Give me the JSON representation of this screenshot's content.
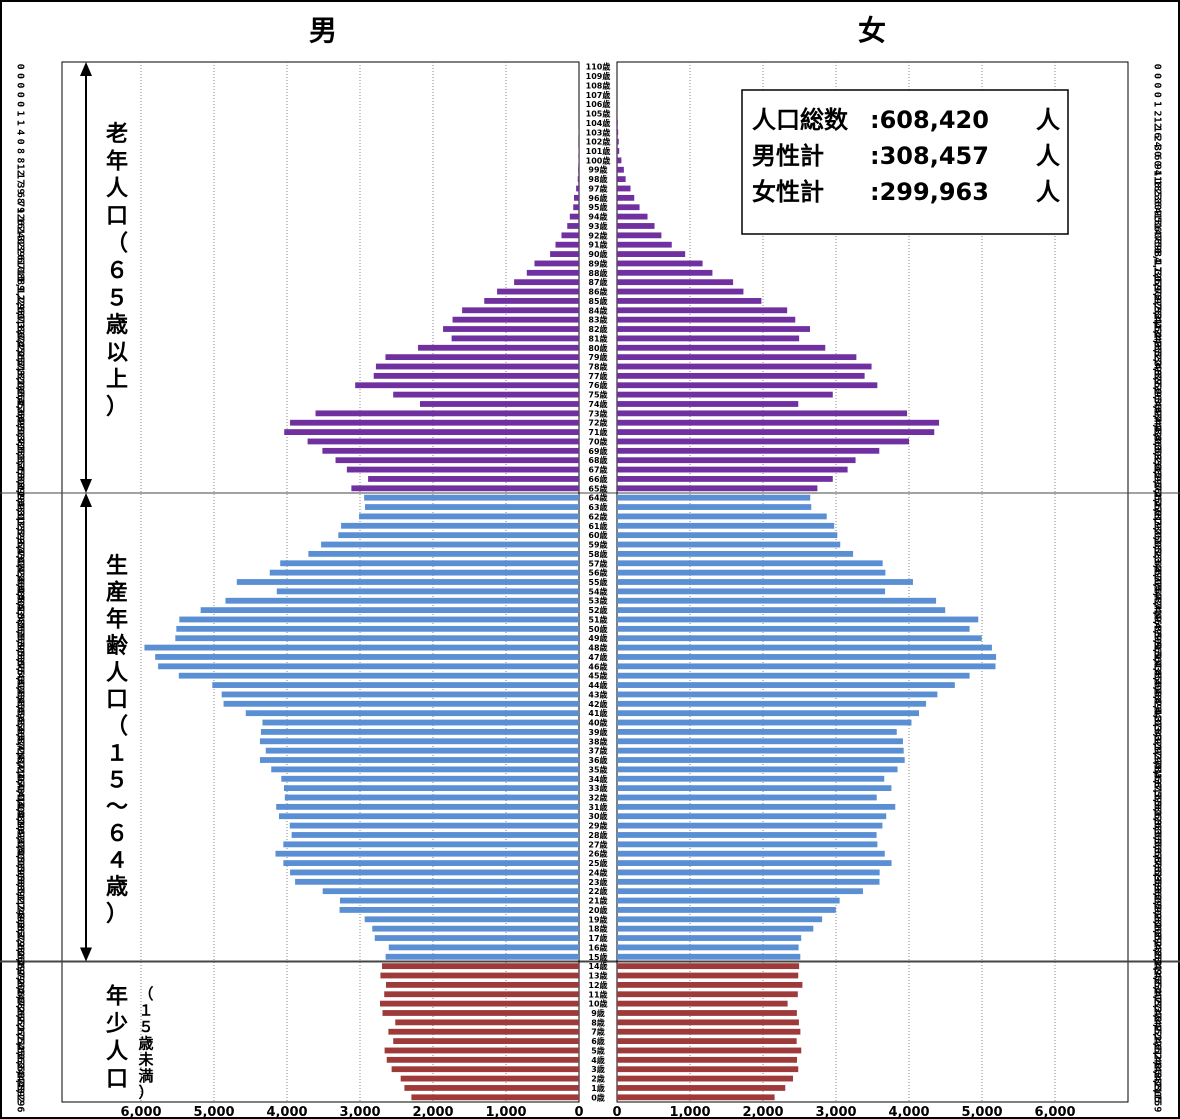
{
  "headers": {
    "male": "男",
    "female": "女"
  },
  "groups": {
    "elderly": "老年人口（６５歳以上）",
    "working": "生産年齢人口（１５～６４歳）",
    "young": "年少人口",
    "young_sub": "（１５歳未満）"
  },
  "summary": {
    "total_label": "人口総数",
    "total_value": ":608,420",
    "total_unit": "人",
    "male_label": "男性計",
    "male_value": ":308,457",
    "male_unit": "人",
    "female_label": "女性計",
    "female_value": ":299,963",
    "female_unit": "人"
  },
  "colors": {
    "elderly": "#7030A0",
    "working": "#5B8FD4",
    "young": "#9E3A3A"
  },
  "chart_data": {
    "type": "bar",
    "orientation": "population-pyramid",
    "ages": [
      "0歳",
      "1歳",
      "2歳",
      "3歳",
      "4歳",
      "5歳",
      "6歳",
      "7歳",
      "8歳",
      "9歳",
      "10歳",
      "11歳",
      "12歳",
      "13歳",
      "14歳",
      "15歳",
      "16歳",
      "17歳",
      "18歳",
      "19歳",
      "20歳",
      "21歳",
      "22歳",
      "23歳",
      "24歳",
      "25歳",
      "26歳",
      "27歳",
      "28歳",
      "29歳",
      "30歳",
      "31歳",
      "32歳",
      "33歳",
      "34歳",
      "35歳",
      "36歳",
      "37歳",
      "38歳",
      "39歳",
      "40歳",
      "41歳",
      "42歳",
      "43歳",
      "44歳",
      "45歳",
      "46歳",
      "47歳",
      "48歳",
      "49歳",
      "50歳",
      "51歳",
      "52歳",
      "53歳",
      "54歳",
      "55歳",
      "56歳",
      "57歳",
      "58歳",
      "59歳",
      "60歳",
      "61歳",
      "62歳",
      "63歳",
      "64歳",
      "65歳",
      "66歳",
      "67歳",
      "68歳",
      "69歳",
      "70歳",
      "71歳",
      "72歳",
      "73歳",
      "74歳",
      "75歳",
      "76歳",
      "77歳",
      "78歳",
      "79歳",
      "80歳",
      "81歳",
      "82歳",
      "83歳",
      "84歳",
      "85歳",
      "86歳",
      "87歳",
      "88歳",
      "89歳",
      "90歳",
      "91歳",
      "92歳",
      "93歳",
      "94歳",
      "95歳",
      "96歳",
      "97歳",
      "98歳",
      "99歳",
      "100歳",
      "101歳",
      "102歳",
      "103歳",
      "104歳",
      "105歳",
      "106歳",
      "107歳",
      "108歳",
      "109歳",
      "110歳"
    ],
    "male_labels": [
      "2,296",
      "2,392",
      "2,443",
      "2,567",
      "2,634",
      "2,663",
      "2,545",
      "2,611",
      "2,517",
      "2,692",
      "2,726",
      "2,668",
      "2,644",
      "2,720",
      "2,699",
      "2,649",
      "2,606",
      "2,798",
      "2,832",
      "2,936",
      "3,280",
      "3,274",
      "3,511",
      "3,889",
      "3,958",
      "4,050",
      "4,158",
      "4,050",
      "3,937",
      "3,962",
      "4,110",
      "4,148",
      "4,030",
      "4,041",
      "4,078",
      "4,216",
      "4,371",
      "4,291",
      "4,371",
      "4,357",
      "4,336",
      "4,565",
      "4,869",
      "4,895",
      "5,023",
      "5,482",
      "5,766",
      "5,806",
      "5,953",
      "5,530",
      "5,516",
      "5,475",
      "5,183",
      "4,843",
      "4,140",
      "4,688",
      "4,236",
      "4,093",
      "3,707",
      "3,533",
      "3,297",
      "3,259",
      "3,013",
      "2,931",
      "2,943",
      "3,118",
      "2,889",
      "3,180",
      "3,335",
      "3,515",
      "3,718",
      "4,038",
      "3,958",
      "3,609",
      "2,178",
      "2,545",
      "3,066",
      "2,812",
      "2,782",
      "2,651",
      "2,205",
      "1,745",
      "1,862",
      "1,732",
      "1,601",
      "1,298",
      "1,122",
      "889",
      "715",
      "610",
      "396",
      "322",
      "240",
      "161",
      "126",
      "79",
      "68",
      "39",
      "17",
      "12",
      "8",
      "8",
      "0",
      "4",
      "1",
      "1",
      "0",
      "0",
      "0",
      "0",
      "0"
    ],
    "female_labels": [
      "2,159",
      "2,305",
      "2,411",
      "2,483",
      "2,466",
      "2,524",
      "2,461",
      "2,512",
      "2,492",
      "2,464",
      "2,337",
      "2,477",
      "2,540",
      "2,483",
      "2,495",
      "2,511",
      "2,488",
      "2,523",
      "2,689",
      "2,810",
      "2,998",
      "3,050",
      "3,369",
      "3,596",
      "3,598",
      "3,761",
      "3,668",
      "3,567",
      "3,556",
      "3,636",
      "3,688",
      "3,812",
      "3,558",
      "3,759",
      "3,661",
      "3,843",
      "3,941",
      "3,927",
      "3,917",
      "3,832",
      "4,034",
      "4,137",
      "4,234",
      "4,389",
      "4,628",
      "4,830",
      "5,185",
      "5,193",
      "5,136",
      "4,996",
      "4,830",
      "4,949",
      "4,496",
      "4,371",
      "3,672",
      "4,054",
      "3,677",
      "3,639",
      "3,234",
      "3,058",
      "3,018",
      "2,975",
      "2,873",
      "2,661",
      "2,647",
      "2,745",
      "2,956",
      "3,159",
      "3,268",
      "3,593",
      "4,000",
      "4,346",
      "4,412",
      "3,974",
      "2,483",
      "2,956",
      "3,566",
      "3,392",
      "3,487",
      "3,279",
      "2,853",
      "2,495",
      "2,644",
      "2,442",
      "2,331",
      "1,978",
      "1,732",
      "1,590",
      "1,307",
      "1,172",
      "934",
      "750",
      "608",
      "514",
      "418",
      "309",
      "236",
      "185",
      "118",
      "94",
      "60",
      "30",
      "24",
      "16",
      "12",
      "2",
      "1",
      "0",
      "0",
      "0",
      "0"
    ],
    "xticks_male": [
      "6,000",
      "5,000",
      "4,000",
      "3,000",
      "2,000",
      "1,000",
      "0"
    ],
    "xticks_female": [
      "0",
      "1,000",
      "2,000",
      "3,000",
      "4,000",
      "5,000",
      "6,000"
    ],
    "xlim": [
      0,
      6000
    ],
    "grid": true
  }
}
